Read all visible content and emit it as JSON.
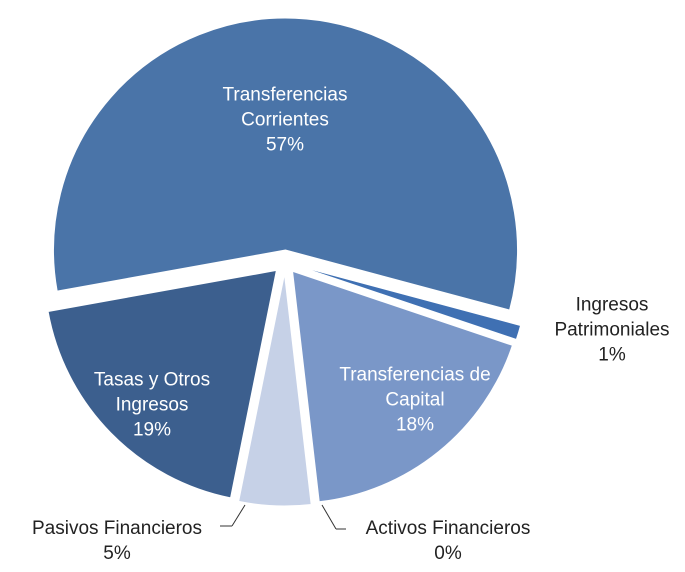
{
  "chart_data": {
    "type": "pie",
    "categories": [
      "Transferencias Corrientes",
      "Ingresos Patrimoniales",
      "Transferencias de Capital",
      "Activos Financieros",
      "Pasivos Financieros",
      "Tasas y Otros Ingresos"
    ],
    "values": [
      57,
      1,
      18,
      0,
      5,
      19
    ],
    "value_labels": [
      "57%",
      "1%",
      "18%",
      "0%",
      "5%",
      "19%"
    ],
    "colors": [
      "#4a74a8",
      "#3f70b3",
      "#7a97c8",
      "#a9b9d9",
      "#c6d1e7",
      "#3c5f8e"
    ],
    "exploded": true
  }
}
